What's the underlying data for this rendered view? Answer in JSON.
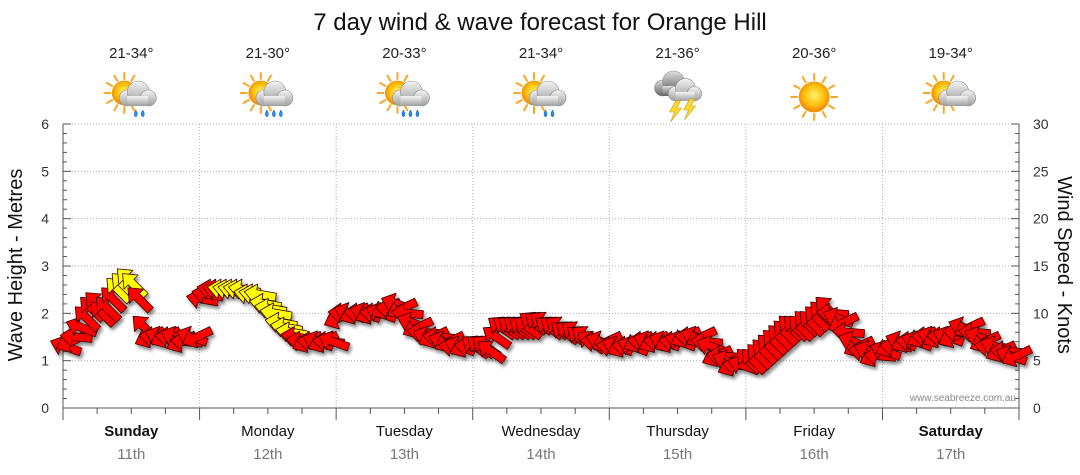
{
  "chart_data": {
    "type": "line",
    "title": "7 day wind & wave forecast for Orange Hill",
    "ylabel_left": "Wave Height - Metres",
    "ylabel_right": "Wind Speed - Knots",
    "ylim_left": [
      0,
      6
    ],
    "ylim_right": [
      0,
      30
    ],
    "yticks_left": [
      "0",
      "1",
      "2",
      "3",
      "4",
      "5",
      "6"
    ],
    "yticks_right": [
      "0",
      "5",
      "10",
      "15",
      "20",
      "25",
      "30"
    ],
    "days": [
      {
        "name": "Sunday",
        "date": "11th",
        "bold": true,
        "temp": "21-34°",
        "icon": "sun-cloud-rain-icon"
      },
      {
        "name": "Monday",
        "date": "12th",
        "bold": false,
        "temp": "21-30°",
        "icon": "sun-cloud-heavy-rain-icon"
      },
      {
        "name": "Tuesday",
        "date": "13th",
        "bold": false,
        "temp": "20-33°",
        "icon": "sun-cloud-heavy-rain-icon"
      },
      {
        "name": "Wednesday",
        "date": "14th",
        "bold": false,
        "temp": "21-34°",
        "icon": "sun-cloud-rain-icon"
      },
      {
        "name": "Thursday",
        "date": "15th",
        "bold": false,
        "temp": "21-36°",
        "icon": "thunderstorm-icon"
      },
      {
        "name": "Friday",
        "date": "16th",
        "bold": false,
        "temp": "20-36°",
        "icon": "sun-icon"
      },
      {
        "name": "Saturday",
        "date": "17th",
        "bold": true,
        "temp": "19-34°",
        "icon": "sun-cloud-icon"
      }
    ],
    "wind_series": {
      "name": "Wind speed (knots)",
      "color_default": "#ff0000",
      "color_strong": "#ffff00",
      "values": [
        6.5,
        7.0,
        7.5,
        8.5,
        9.5,
        10.5,
        11.0,
        10.0,
        10.5,
        11.5,
        12.5,
        13.0,
        13.5,
        13.0,
        11.5,
        8.5,
        7.5,
        7.5,
        7.5,
        7.5,
        7.5,
        7.5,
        7.0,
        7.0,
        7.5,
        7.5,
        11.5,
        12.0,
        12.5,
        12.5,
        12.5,
        12.5,
        12.5,
        12.5,
        12.5,
        12.0,
        12.0,
        12.0,
        11.0,
        10.5,
        10.0,
        9.0,
        8.5,
        8.0,
        7.5,
        7.0,
        7.0,
        7.0,
        7.0,
        7.0,
        7.0,
        7.0,
        9.5,
        10.0,
        10.0,
        10.0,
        10.0,
        10.0,
        10.0,
        10.0,
        10.0,
        10.5,
        10.5,
        11.0,
        10.5,
        10.0,
        9.0,
        8.5,
        8.0,
        7.5,
        7.5,
        7.5,
        7.0,
        7.0,
        6.5,
        6.5,
        6.5,
        6.5,
        6.5,
        6.5,
        6.5,
        6.0,
        7.5,
        8.5,
        8.5,
        8.5,
        8.5,
        8.5,
        8.5,
        9.0,
        9.0,
        9.0,
        8.5,
        8.5,
        8.5,
        8.0,
        8.0,
        8.0,
        7.5,
        7.5,
        7.0,
        7.0,
        7.0,
        7.0,
        6.5,
        6.5,
        6.5,
        6.5,
        6.5,
        7.0,
        7.0,
        7.0,
        7.0,
        7.0,
        7.0,
        7.0,
        7.0,
        7.0,
        7.5,
        7.5,
        7.5,
        7.5,
        7.0,
        6.5,
        5.5,
        5.5,
        5.0,
        4.5,
        4.5,
        4.5,
        5.0,
        5.0,
        5.5,
        6.0,
        6.5,
        7.0,
        7.5,
        8.0,
        8.5,
        8.5,
        8.5,
        9.0,
        9.0,
        9.5,
        10.0,
        10.5,
        10.0,
        9.5,
        9.0,
        8.0,
        7.0,
        6.5,
        6.0,
        6.0,
        5.5,
        5.5,
        6.0,
        6.5,
        6.5,
        7.0,
        7.0,
        7.0,
        7.0,
        7.5,
        7.5,
        7.5,
        7.5,
        7.5,
        7.5,
        7.5,
        8.0,
        8.5,
        8.5,
        8.0,
        7.5,
        7.0,
        6.5,
        6.5,
        6.0,
        6.0,
        5.5,
        5.5
      ],
      "strong_ranges": [
        [
          10,
          13
        ],
        [
          30,
          43
        ]
      ]
    }
  },
  "credit": "www.seabreeze.com.au"
}
